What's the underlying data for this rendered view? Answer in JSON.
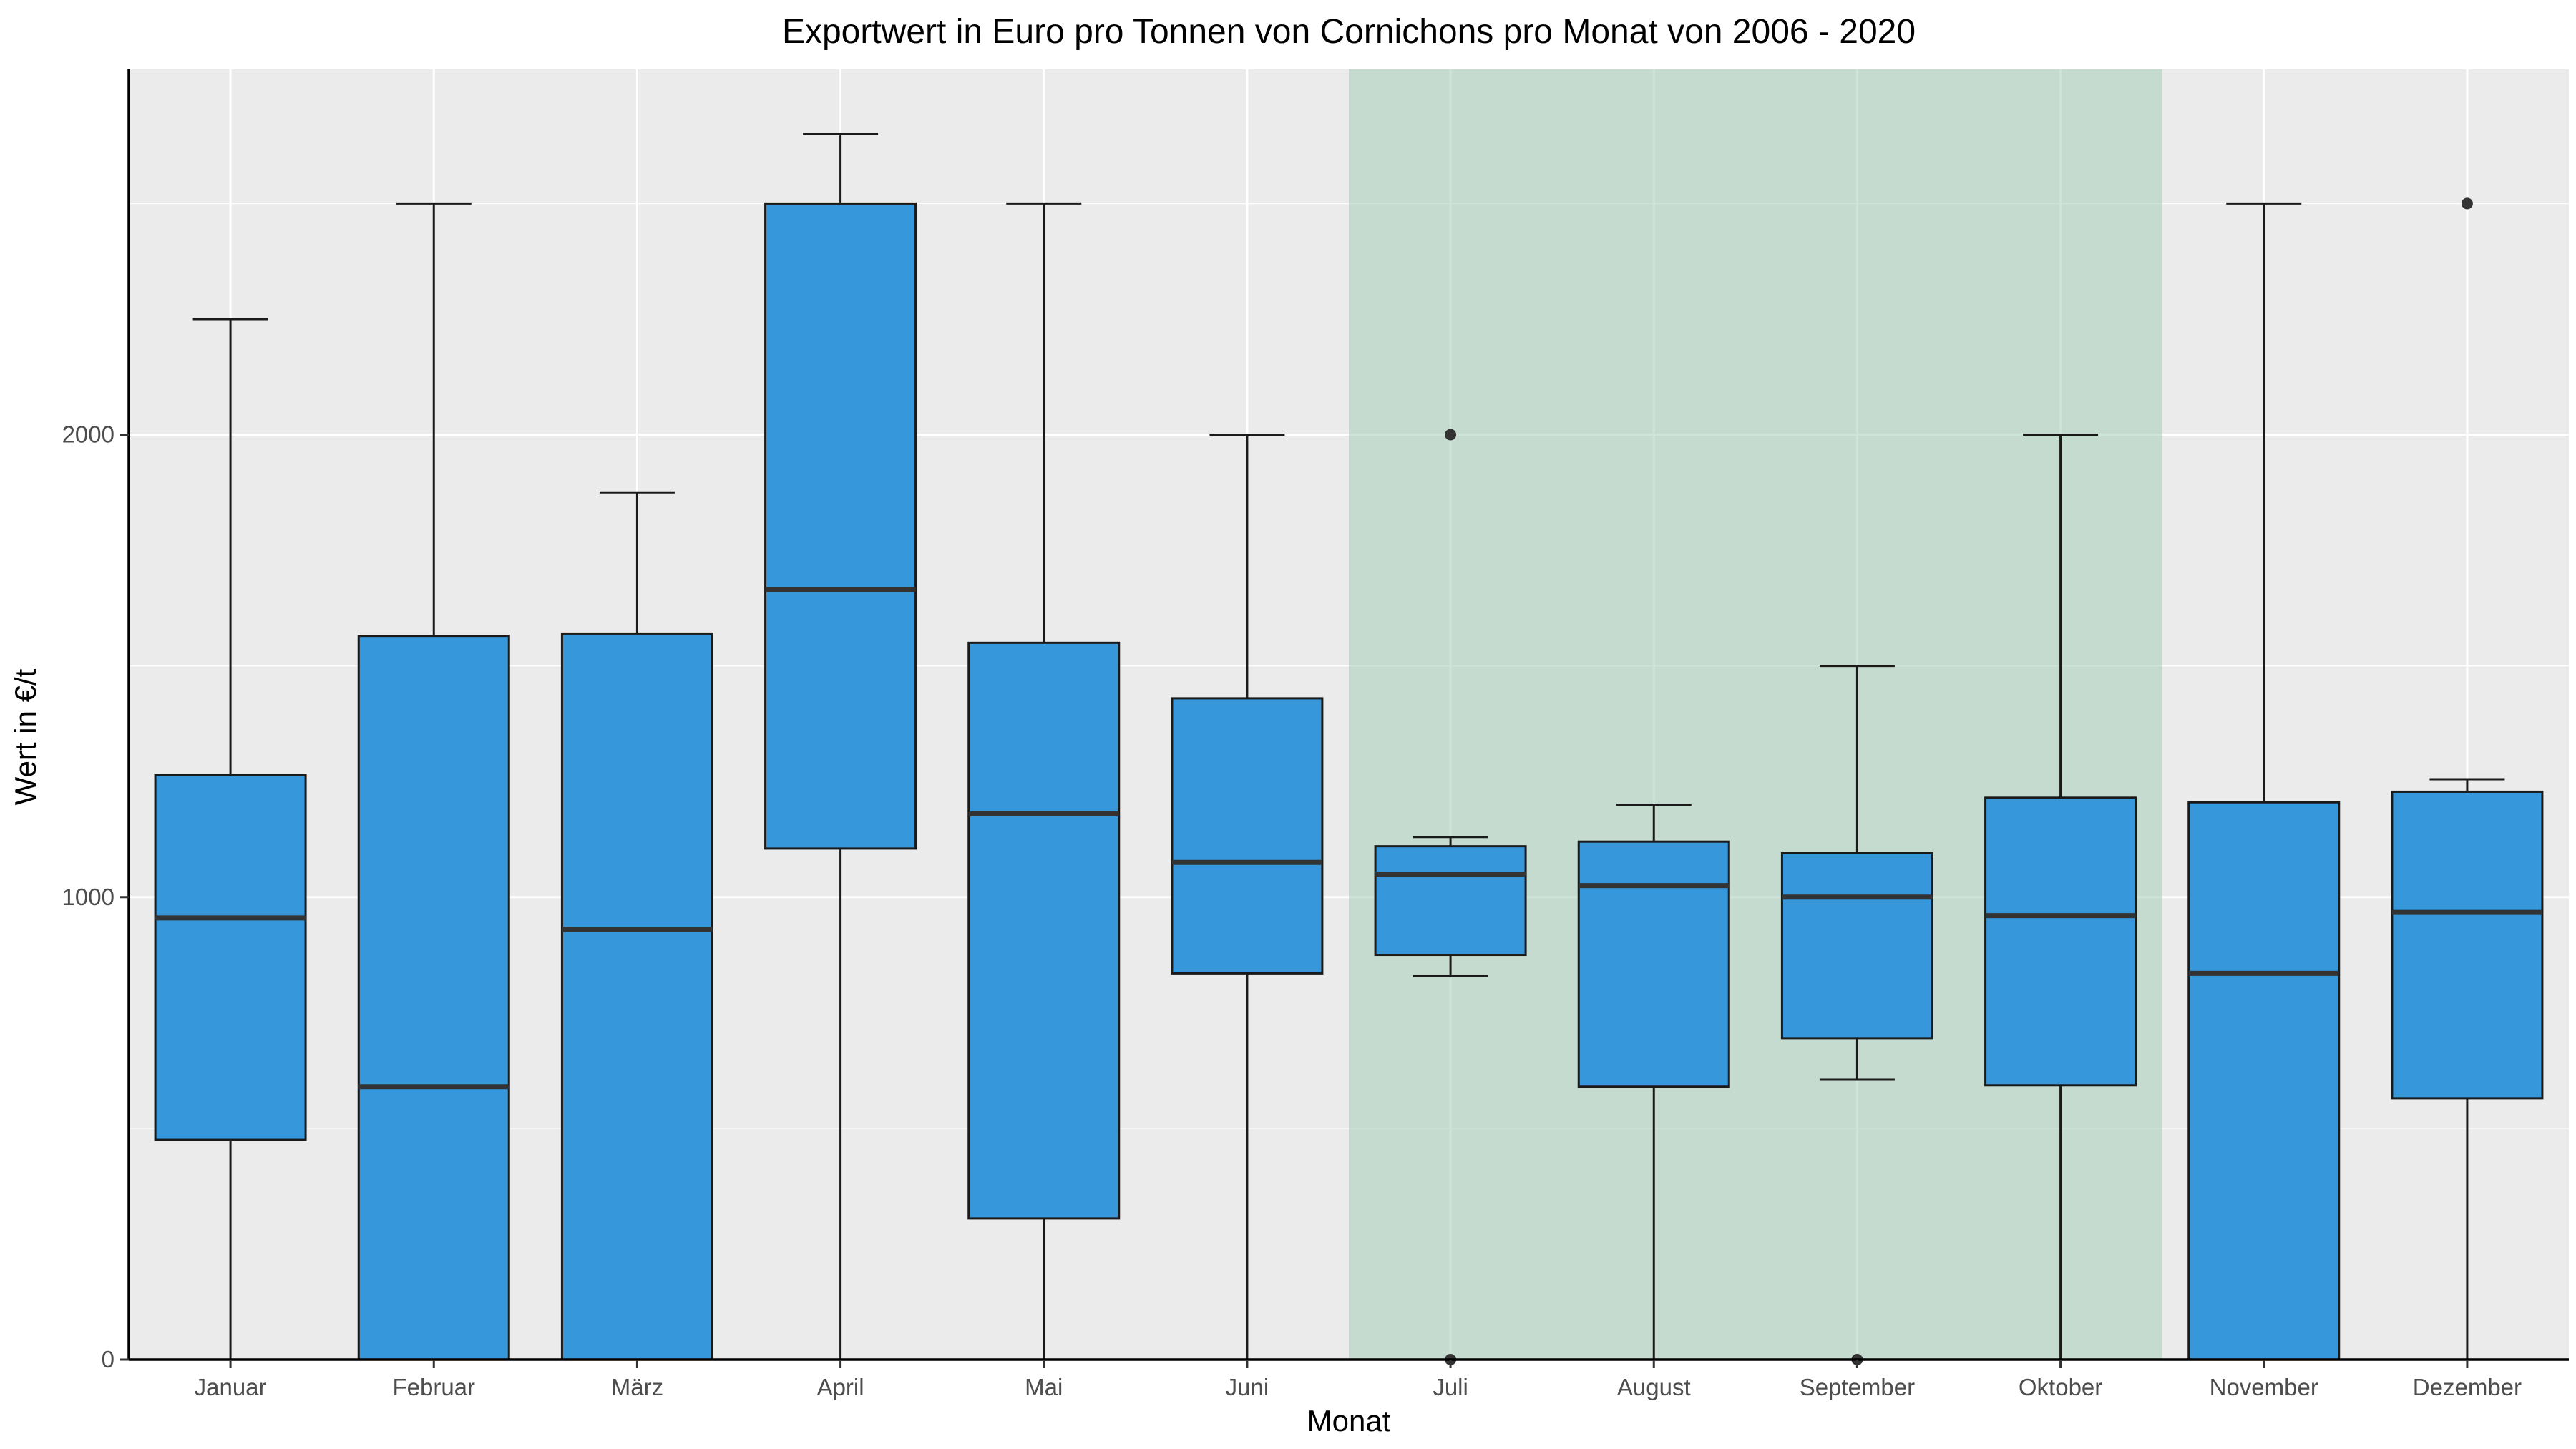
{
  "chart_data": {
    "type": "boxplot",
    "title": "Exportwert in Euro pro Tonnen von Cornichons pro Monat von 2006 - 2020",
    "xlabel": "Monat",
    "ylabel": "Wert in €/t",
    "ylim": [
      0,
      2790
    ],
    "yticks": [
      0,
      1000,
      2000
    ],
    "grid": true,
    "legend": "none",
    "categories": [
      "Januar",
      "Februar",
      "März",
      "April",
      "Mai",
      "Juni",
      "Juli",
      "August",
      "September",
      "Oktober",
      "November",
      "Dezember"
    ],
    "boxes": [
      {
        "whisker_low": 0,
        "q1": 475,
        "median": 955,
        "q3": 1265,
        "whisker_high": 2250,
        "outliers": []
      },
      {
        "whisker_low": 0,
        "q1": 0,
        "median": 590,
        "q3": 1565,
        "whisker_high": 2500,
        "outliers": []
      },
      {
        "whisker_low": 0,
        "q1": 0,
        "median": 930,
        "q3": 1570,
        "whisker_high": 1875,
        "outliers": []
      },
      {
        "whisker_low": 0,
        "q1": 1105,
        "median": 1665,
        "q3": 2500,
        "whisker_high": 2650,
        "outliers": []
      },
      {
        "whisker_low": 0,
        "q1": 305,
        "median": 1180,
        "q3": 1550,
        "whisker_high": 2500,
        "outliers": []
      },
      {
        "whisker_low": 0,
        "q1": 835,
        "median": 1075,
        "q3": 1430,
        "whisker_high": 2000,
        "outliers": []
      },
      {
        "whisker_low": 830,
        "q1": 875,
        "median": 1050,
        "q3": 1110,
        "whisker_high": 1130,
        "outliers": [
          2000,
          0
        ]
      },
      {
        "whisker_low": 0,
        "q1": 590,
        "median": 1025,
        "q3": 1120,
        "whisker_high": 1200,
        "outliers": []
      },
      {
        "whisker_low": 605,
        "q1": 695,
        "median": 1000,
        "q3": 1095,
        "whisker_high": 1500,
        "outliers": [
          0
        ]
      },
      {
        "whisker_low": 0,
        "q1": 593,
        "median": 960,
        "q3": 1215,
        "whisker_high": 2000,
        "outliers": []
      },
      {
        "whisker_low": 0,
        "q1": 0,
        "median": 835,
        "q3": 1205,
        "whisker_high": 2500,
        "outliers": []
      },
      {
        "whisker_low": 0,
        "q1": 565,
        "median": 967,
        "q3": 1228,
        "whisker_high": 1255,
        "outliers": [
          2500
        ]
      }
    ],
    "highlight_range": {
      "from": "Juli",
      "to": "Oktober",
      "color": "#a8cdb8"
    },
    "colors": {
      "panel": "#ebebeb",
      "grid_major": "#ffffff",
      "box_fill": "#3697db",
      "box_stroke": "#1a1a1a",
      "median": "#333333",
      "highlight": "#a8cdb8"
    }
  }
}
